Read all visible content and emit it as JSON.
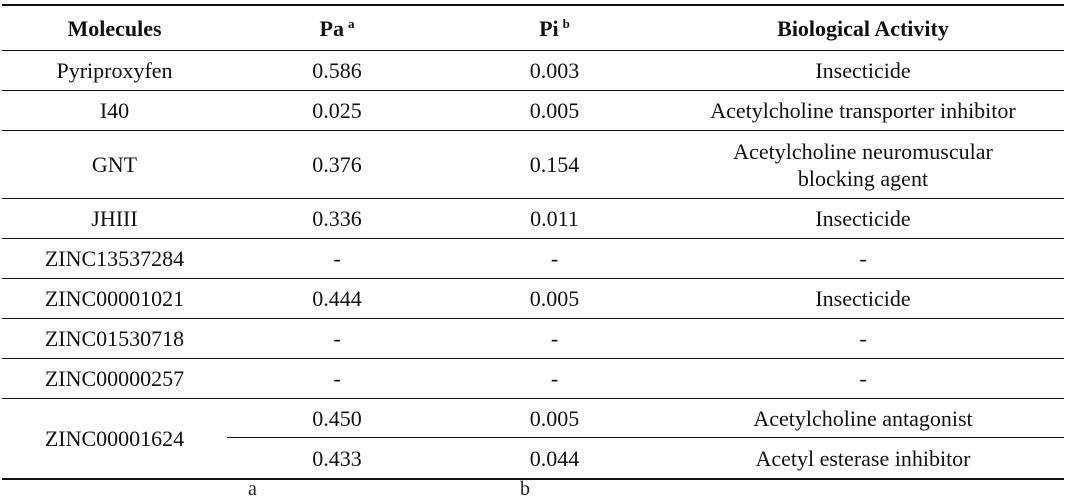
{
  "headers": {
    "molecules": "Molecules",
    "pa": "Pa",
    "pa_sup": "a",
    "pi": "Pi",
    "pi_sup": "b",
    "activity": "Biological Activity"
  },
  "rows": [
    {
      "molecule": "Pyriproxyfen",
      "pa": "0.586",
      "pi": "0.003",
      "activity": "Insecticide"
    },
    {
      "molecule": "I40",
      "pa": "0.025",
      "pi": "0.005",
      "activity": "Acetylcholine transporter inhibitor"
    },
    {
      "molecule": "GNT",
      "pa": "0.376",
      "pi": "0.154",
      "activity_line1": "Acetylcholine neuromuscular",
      "activity_line2": "blocking agent"
    },
    {
      "molecule": "JHIII",
      "pa": "0.336",
      "pi": "0.011",
      "activity": "Insecticide"
    },
    {
      "molecule": "ZINC13537284",
      "pa": "-",
      "pi": "-",
      "activity": "-"
    },
    {
      "molecule": "ZINC00001021",
      "pa": "0.444",
      "pi": "0.005",
      "activity": "Insecticide"
    },
    {
      "molecule": "ZINC01530718",
      "pa": "-",
      "pi": "-",
      "activity": "-"
    },
    {
      "molecule": "ZINC00000257",
      "pa": "-",
      "pi": "-",
      "activity": "-"
    },
    {
      "molecule": "ZINC00001624",
      "entries": [
        {
          "pa": "0.450",
          "pi": "0.005",
          "activity": "Acetylcholine antagonist"
        },
        {
          "pa": "0.433",
          "pi": "0.044",
          "activity": "Acetyl esterase inhibitor"
        }
      ]
    }
  ],
  "footnote": {
    "a": "a",
    "b": "b"
  }
}
